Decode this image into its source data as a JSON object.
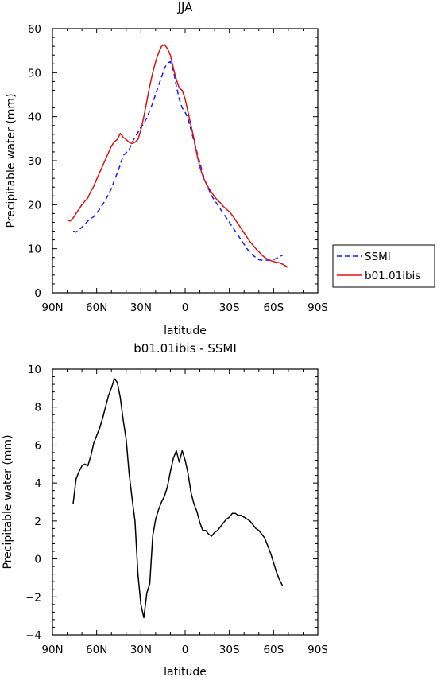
{
  "chart_data": [
    {
      "type": "line",
      "title": "JJA",
      "xlabel": "latitude",
      "ylabel": "Precipitable water (mm)",
      "xlim": [
        90,
        -90
      ],
      "ylim": [
        0,
        60
      ],
      "xticks": [
        90,
        60,
        30,
        0,
        -30,
        -60,
        -90
      ],
      "xtick_labels": [
        "90N",
        "60N",
        "30N",
        "0",
        "30S",
        "60S",
        "90S"
      ],
      "yticks": [
        0,
        10,
        20,
        30,
        40,
        50,
        60
      ],
      "ytick_labels": [
        "0",
        "10",
        "20",
        "30",
        "40",
        "50",
        "60"
      ],
      "grid": false,
      "legend_position": "right",
      "series": [
        {
          "name": "SSMI",
          "color": "#1a1aff",
          "dash": "dashed",
          "x": [
            76,
            74,
            72,
            70,
            68,
            66,
            64,
            62,
            60,
            58,
            56,
            54,
            52,
            50,
            48,
            46,
            44,
            42,
            40,
            38,
            36,
            34,
            32,
            30,
            28,
            26,
            24,
            22,
            20,
            18,
            16,
            14,
            12,
            10,
            8,
            6,
            4,
            2,
            0,
            -2,
            -4,
            -6,
            -8,
            -10,
            -12,
            -14,
            -16,
            -18,
            -20,
            -22,
            -24,
            -26,
            -28,
            -30,
            -32,
            -34,
            -36,
            -38,
            -40,
            -42,
            -44,
            -46,
            -48,
            -50,
            -52,
            -54,
            -56,
            -58,
            -60,
            -62,
            -64,
            -66
          ],
          "y": [
            14.0,
            13.8,
            14.3,
            14.9,
            15.6,
            16.3,
            16.8,
            17.3,
            18.1,
            19.0,
            20.0,
            21.1,
            22.3,
            23.7,
            25.5,
            27.2,
            29.1,
            31.2,
            31.8,
            32.5,
            34.1,
            35.4,
            36.4,
            37.6,
            38.4,
            39.8,
            41.4,
            43.1,
            45.1,
            47.1,
            49.0,
            51.0,
            52.2,
            52.5,
            50.5,
            47.0,
            44.0,
            42.0,
            41.0,
            39.5,
            37.0,
            34.5,
            32.0,
            29.5,
            27.0,
            25.0,
            23.5,
            22.0,
            21.0,
            20.0,
            19.0,
            18.0,
            17.0,
            16.0,
            15.0,
            14.0,
            13.0,
            12.0,
            11.0,
            10.0,
            9.2,
            8.5,
            8.0,
            7.5,
            7.4,
            7.4,
            7.4,
            7.4,
            7.5,
            7.8,
            8.2,
            8.5
          ]
        },
        {
          "name": "b01.01ibis",
          "color": "#e01010",
          "dash": "solid",
          "x": [
            80,
            78,
            76,
            74,
            72,
            70,
            68,
            66,
            64,
            62,
            60,
            58,
            56,
            54,
            52,
            50,
            48,
            46,
            44,
            42,
            40,
            38,
            36,
            34,
            32,
            30,
            28,
            26,
            24,
            22,
            20,
            18,
            16,
            14,
            12,
            10,
            8,
            6,
            4,
            2,
            0,
            -2,
            -4,
            -6,
            -8,
            -10,
            -12,
            -14,
            -16,
            -18,
            -20,
            -22,
            -24,
            -26,
            -28,
            -30,
            -32,
            -34,
            -36,
            -38,
            -40,
            -42,
            -44,
            -46,
            -48,
            -50,
            -52,
            -54,
            -56,
            -58,
            -60,
            -62,
            -64,
            -66,
            -68,
            -70
          ],
          "y": [
            16.5,
            16.3,
            17.0,
            18.0,
            19.0,
            20.0,
            20.8,
            21.5,
            23.0,
            24.2,
            25.8,
            27.3,
            28.8,
            30.3,
            31.8,
            33.3,
            34.3,
            34.8,
            36.2,
            35.3,
            34.8,
            34.2,
            33.9,
            34.2,
            34.8,
            37.0,
            40.0,
            43.5,
            47.0,
            50.0,
            52.5,
            54.5,
            56.0,
            56.4,
            55.5,
            54.0,
            51.0,
            48.5,
            46.5,
            46.0,
            44.0,
            41.0,
            38.0,
            35.0,
            31.5,
            28.5,
            26.5,
            25.0,
            23.8,
            22.8,
            21.8,
            21.0,
            20.4,
            19.6,
            19.0,
            18.4,
            17.6,
            16.6,
            15.6,
            14.6,
            13.6,
            12.6,
            11.6,
            10.8,
            10.0,
            9.3,
            8.6,
            8.0,
            7.6,
            7.3,
            7.1,
            6.9,
            6.8,
            6.5,
            6.1,
            5.7
          ]
        }
      ]
    },
    {
      "type": "line",
      "title": "b01.01ibis - SSMI",
      "xlabel": "latitude",
      "ylabel": "Precipitable water (mm)",
      "xlim": [
        90,
        -90
      ],
      "ylim": [
        -4,
        10
      ],
      "xticks": [
        90,
        60,
        30,
        0,
        -30,
        -60,
        -90
      ],
      "xtick_labels": [
        "90N",
        "60N",
        "30N",
        "0",
        "30S",
        "60S",
        "90S"
      ],
      "yticks": [
        -4,
        -2,
        0,
        2,
        4,
        6,
        8,
        10
      ],
      "ytick_labels": [
        "−4",
        "−2",
        "0",
        "2",
        "4",
        "6",
        "8",
        "10"
      ],
      "grid": false,
      "series": [
        {
          "color": "#000000",
          "dash": "solid",
          "x": [
            76,
            74,
            72,
            70,
            68,
            66,
            64,
            62,
            60,
            58,
            56,
            54,
            52,
            50,
            48,
            46,
            44,
            42,
            40,
            38,
            36,
            34,
            32,
            30,
            28,
            26,
            24,
            22,
            20,
            18,
            16,
            14,
            12,
            10,
            8,
            6,
            4,
            2,
            0,
            -2,
            -4,
            -6,
            -8,
            -10,
            -12,
            -14,
            -16,
            -18,
            -20,
            -22,
            -24,
            -26,
            -28,
            -30,
            -32,
            -34,
            -36,
            -38,
            -40,
            -42,
            -44,
            -46,
            -48,
            -50,
            -52,
            -54,
            -56,
            -58,
            -60,
            -62,
            -64,
            -66
          ],
          "y": [
            2.9,
            4.2,
            4.6,
            4.9,
            5.0,
            4.9,
            5.4,
            6.1,
            6.5,
            6.9,
            7.4,
            8.0,
            8.6,
            9.0,
            9.5,
            9.3,
            8.5,
            7.3,
            6.3,
            4.5,
            3.2,
            2.0,
            -0.8,
            -2.4,
            -3.1,
            -1.8,
            -1.3,
            1.2,
            2.1,
            2.6,
            3.0,
            3.3,
            3.8,
            4.6,
            5.3,
            5.7,
            5.1,
            5.7,
            5.2,
            4.5,
            3.5,
            2.9,
            2.5,
            1.9,
            1.5,
            1.5,
            1.3,
            1.2,
            1.4,
            1.5,
            1.7,
            1.9,
            2.1,
            2.2,
            2.4,
            2.4,
            2.3,
            2.3,
            2.2,
            2.1,
            2.0,
            1.8,
            1.6,
            1.5,
            1.3,
            1.1,
            0.7,
            0.3,
            -0.2,
            -0.7,
            -1.1,
            -1.4
          ]
        }
      ]
    }
  ]
}
